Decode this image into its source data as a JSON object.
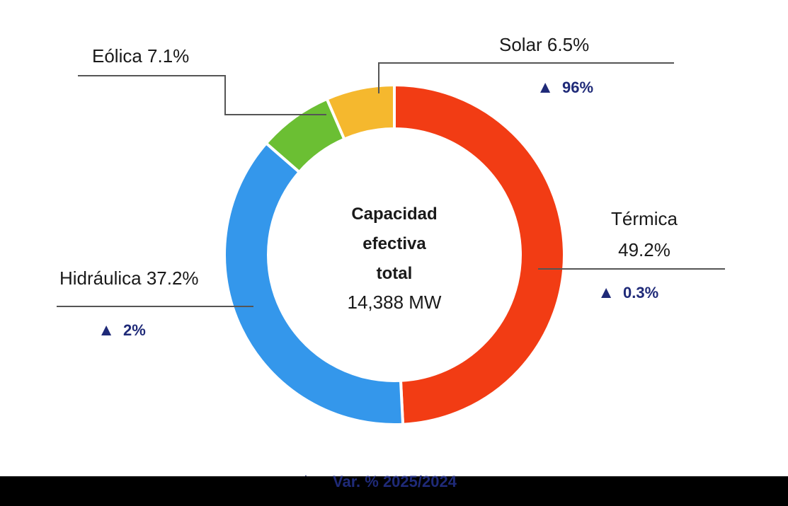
{
  "chart_data": {
    "type": "pie",
    "style": "donut",
    "center_label_lines": [
      "Capacidad",
      "efectiva",
      "total"
    ],
    "center_value": "14,388 MW",
    "slices": [
      {
        "label": "Térmica",
        "label_lines": [
          "Térmica",
          "49.2%"
        ],
        "share": 49.2,
        "display": "49.2%",
        "change": "0.3%",
        "color": "#f23c14"
      },
      {
        "label": "Hidráulica",
        "label_lines": [
          "Hidráulica 37.2%"
        ],
        "share": 37.2,
        "display": "37.2%",
        "change": "2%",
        "color": "#3497eb"
      },
      {
        "label": "Eólica",
        "label_lines": [
          "Eólica 7.1%"
        ],
        "share": 7.1,
        "display": "7.1%",
        "change": null,
        "color": "#6bbf33"
      },
      {
        "label": "Solar",
        "label_lines": [
          "Solar 6.5%"
        ],
        "share": 6.5,
        "display": "6.5%",
        "change": "96%",
        "color": "#f5b82e"
      }
    ],
    "legend": {
      "marker": "▲",
      "text": "Var. % 2025/2024",
      "color": "#1f2a78"
    }
  }
}
